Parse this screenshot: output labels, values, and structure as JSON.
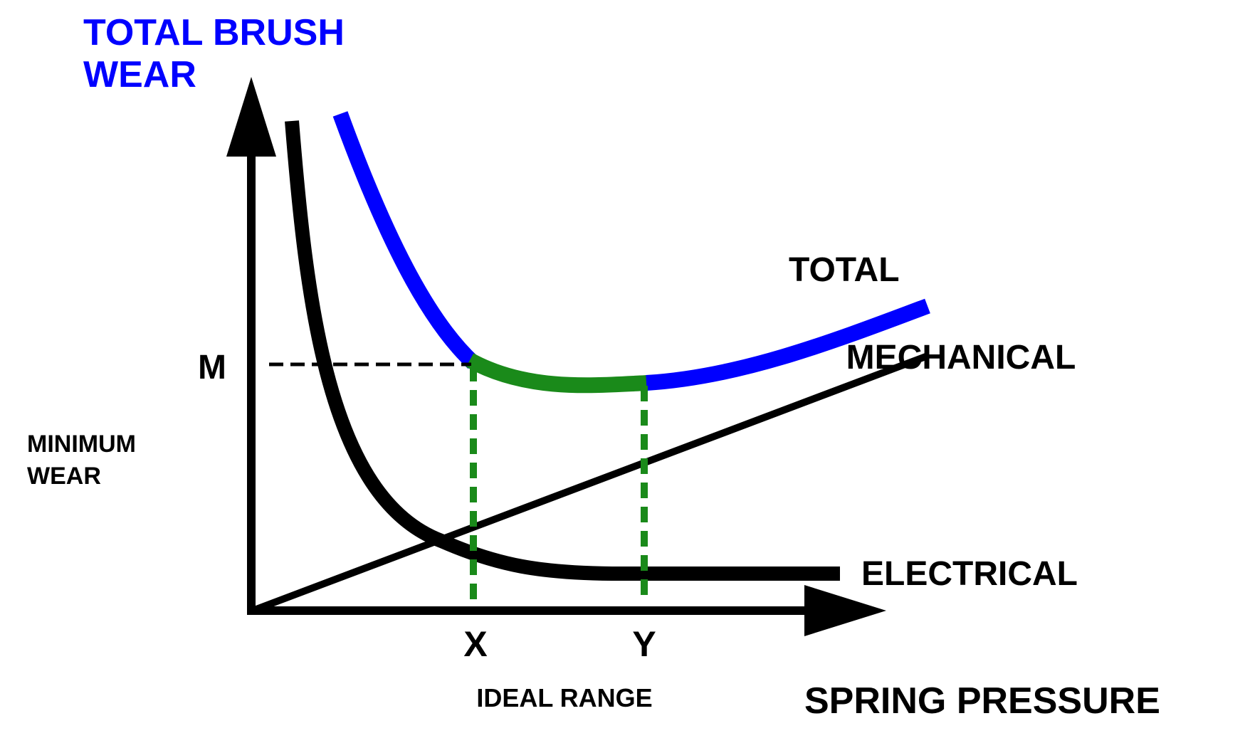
{
  "title": {
    "line1": "TOTAL BRUSH",
    "line2": "WEAR"
  },
  "axes": {
    "x_label": "SPRING PRESSURE",
    "y_marker": "M",
    "y_side_label": {
      "line1": "MINIMUM",
      "line2": "WEAR"
    }
  },
  "curves": {
    "total": "TOTAL",
    "mechanical": "MECHANICAL",
    "electrical": "ELECTRICAL"
  },
  "range": {
    "x_marker": "X",
    "y_marker": "Y",
    "label": "IDEAL RANGE"
  },
  "colors": {
    "ink": "#000000",
    "total_curve": "#0000ff",
    "ideal_range": "#1a8a1a",
    "title": "#0000ff"
  }
}
